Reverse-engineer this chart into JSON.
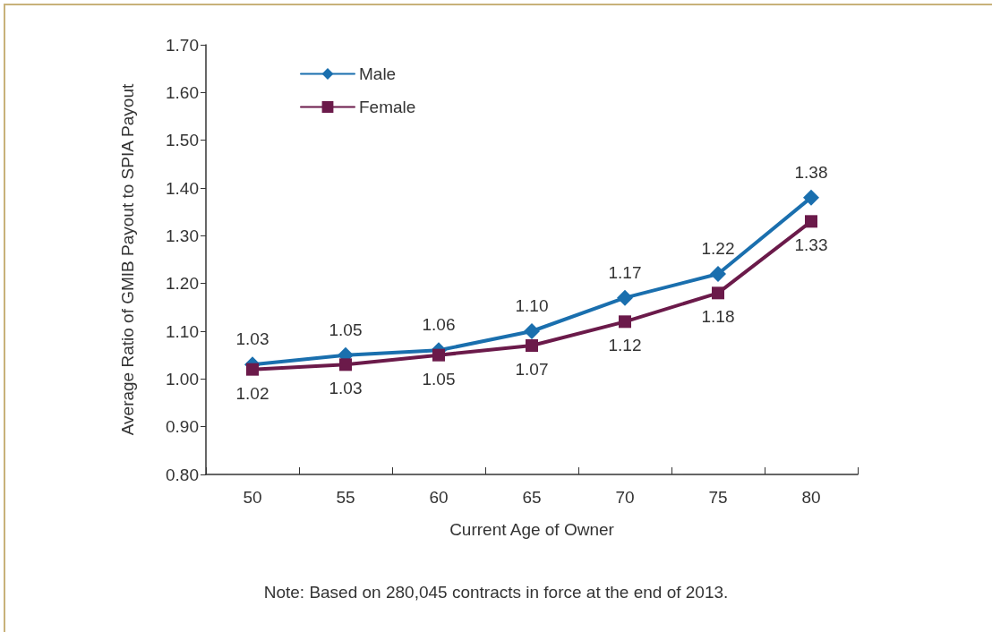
{
  "chart_data": {
    "type": "line",
    "xlabel": "Current Age of Owner",
    "ylabel": "Average Ratio of GMIB Payout to SPIA Payout",
    "categories": [
      "50",
      "55",
      "60",
      "65",
      "70",
      "75",
      "80"
    ],
    "series": [
      {
        "name": "Male",
        "color": "#1a6fae",
        "marker": "diamond",
        "values": [
          1.03,
          1.05,
          1.06,
          1.1,
          1.17,
          1.22,
          1.38
        ],
        "value_labels": [
          "1.03",
          "1.05",
          "1.06",
          "1.10",
          "1.17",
          "1.22",
          "1.38"
        ]
      },
      {
        "name": "Female",
        "color": "#6b1a4a",
        "marker": "square",
        "values": [
          1.02,
          1.03,
          1.05,
          1.07,
          1.12,
          1.18,
          1.33
        ],
        "value_labels": [
          "1.02",
          "1.03",
          "1.05",
          "1.07",
          "1.12",
          "1.18",
          "1.33"
        ]
      }
    ],
    "ylim": [
      0.8,
      1.7
    ],
    "yticks": [
      {
        "value": 0.8,
        "label": "0.80"
      },
      {
        "value": 0.9,
        "label": "0.90"
      },
      {
        "value": 1.0,
        "label": "1.00"
      },
      {
        "value": 1.1,
        "label": "1.10"
      },
      {
        "value": 1.2,
        "label": "1.20"
      },
      {
        "value": 1.3,
        "label": "1.30"
      },
      {
        "value": 1.4,
        "label": "1.40"
      },
      {
        "value": 1.5,
        "label": "1.50"
      },
      {
        "value": 1.6,
        "label": "1.60"
      },
      {
        "value": 1.7,
        "label": "1.70"
      }
    ],
    "grid": false,
    "legend": "top left",
    "line_style": "solid",
    "annotations": [
      "Note: Based on 280,045 contracts in force at the end of 2013."
    ]
  }
}
